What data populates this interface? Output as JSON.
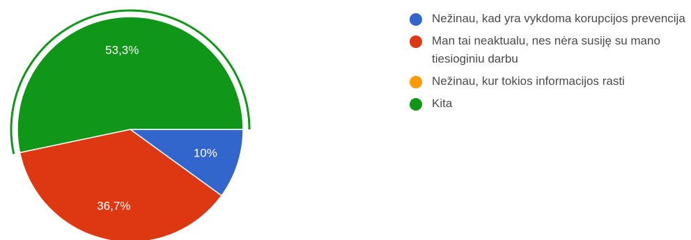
{
  "chart_data": {
    "type": "pie",
    "title": "",
    "slices": [
      {
        "label": "Nežinau, kad yra vykdoma korupcijos prevencija",
        "value": 10,
        "value_label": "10%",
        "color": "#3366cc"
      },
      {
        "label": "Man tai neaktualu, nes nėra susiję su mano tiesioginiu darbu",
        "value": 36.7,
        "value_label": "36,7%",
        "color": "#dc3912"
      },
      {
        "label": "Nežinau, kur tokios informacijos rasti",
        "value": 0,
        "value_label": "",
        "color": "#ff9900"
      },
      {
        "label": "Kita",
        "value": 53.3,
        "value_label": "53,3%",
        "color": "#109618"
      }
    ],
    "highlighted_slice": "Kita",
    "legend_position": "right"
  }
}
